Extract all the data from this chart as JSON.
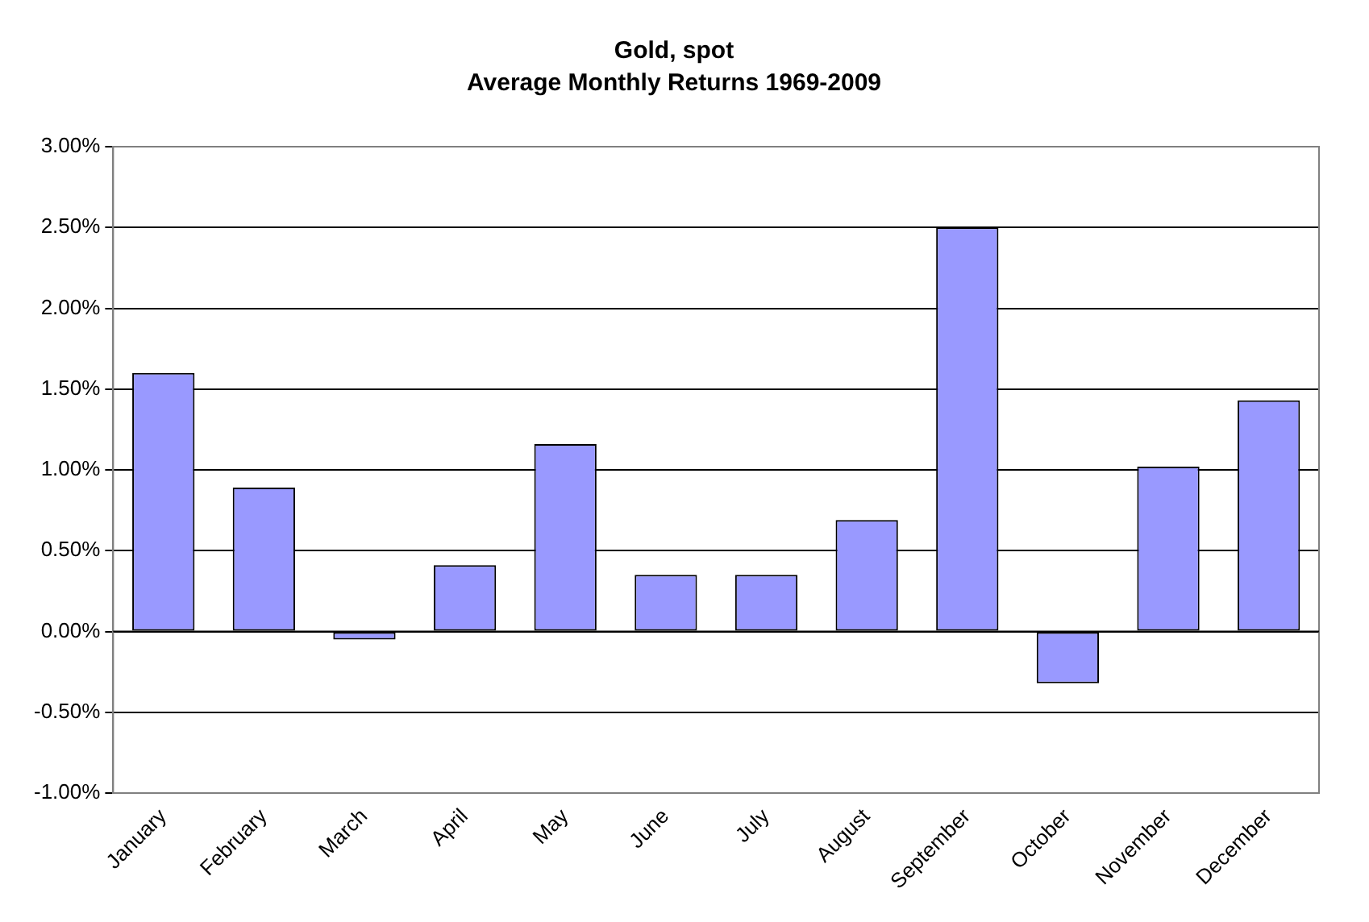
{
  "chart_data": {
    "type": "bar",
    "title": "Gold, spot",
    "subtitle": "Average Monthly Returns 1969-2009",
    "categories": [
      "January",
      "February",
      "March",
      "April",
      "May",
      "June",
      "July",
      "August",
      "September",
      "October",
      "November",
      "December"
    ],
    "values": [
      1.6,
      0.89,
      -0.05,
      0.41,
      1.16,
      0.35,
      0.35,
      0.69,
      2.5,
      -0.32,
      1.02,
      1.43
    ],
    "color": "#9999ff",
    "ylim": [
      -1,
      3
    ],
    "yticks": [
      {
        "value": -1,
        "label": "-1.00%"
      },
      {
        "value": -0.5,
        "label": "-0.50%"
      },
      {
        "value": 0,
        "label": "0.00%"
      },
      {
        "value": 0.5,
        "label": "0.50%"
      },
      {
        "value": 1,
        "label": "1.00%"
      },
      {
        "value": 1.5,
        "label": "1.50%"
      },
      {
        "value": 2,
        "label": "2.00%"
      },
      {
        "value": 2.5,
        "label": "2.50%"
      },
      {
        "value": 3,
        "label": "3.00%"
      }
    ],
    "grid": "y",
    "legend": false
  }
}
